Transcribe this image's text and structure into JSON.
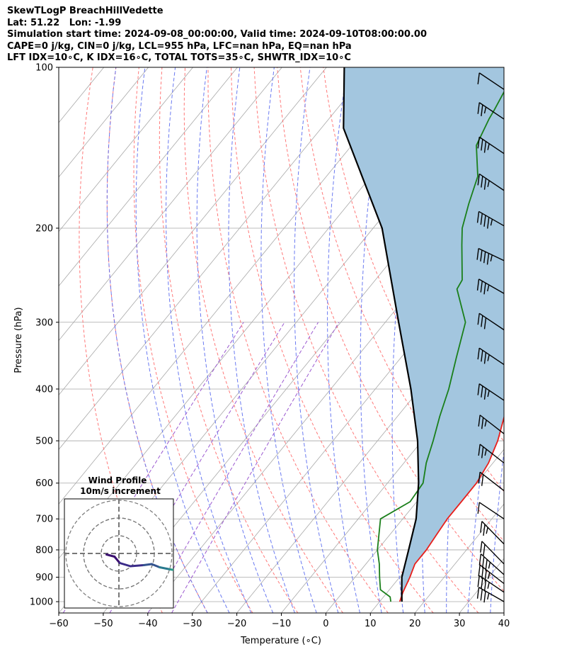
{
  "header": {
    "line1": "SkewTLogP BreachHillVedette",
    "line2": "Lat: 51.22   Lon: -1.99",
    "line3": "Simulation start time: 2024-09-08_00:00:00, Valid time: 2024-09-10T08:00:00.00",
    "line4": "CAPE=0 j/kg, CIN=0 j/kg, LCL=955 hPa, LFC=nan hPa, EQ=nan hPa",
    "line5": "LFT IDX=10∘C, K IDX=16∘C, TOTAL TOTS=35∘C, SHWTR_IDX=10∘C"
  },
  "chart_data": {
    "type": "line",
    "subtype": "skew-t log-p",
    "xlabel": "Temperature (∘C)",
    "ylabel": "Pressure (hPa)",
    "xlim": [
      -60,
      40
    ],
    "ylim": [
      1050,
      100
    ],
    "y_scale": "log",
    "grid": true,
    "x_ticks": [
      "−60",
      "−50",
      "−40",
      "−30",
      "−20",
      "−10",
      "0",
      "10",
      "20",
      "30",
      "40"
    ],
    "y_ticks": [
      "100",
      "200",
      "300",
      "400",
      "500",
      "600",
      "700",
      "800",
      "900",
      "1000"
    ],
    "y_tick_values": [
      100,
      200,
      300,
      400,
      500,
      600,
      700,
      800,
      900,
      1000
    ],
    "series": [
      {
        "key": "temperature",
        "color": "#e8201c",
        "points": [
          [
            14.5,
            1000
          ],
          [
            13.5,
            960
          ],
          [
            12.3,
            900
          ],
          [
            11.0,
            850
          ],
          [
            11.0,
            800
          ],
          [
            10.5,
            750
          ],
          [
            10.0,
            700
          ],
          [
            10.0,
            650
          ],
          [
            10.0,
            600
          ],
          [
            9.0,
            550
          ],
          [
            7.0,
            500
          ],
          [
            4.0,
            450
          ],
          [
            1.5,
            400
          ],
          [
            -1.5,
            350
          ],
          [
            -4.0,
            300
          ],
          [
            -10.0,
            250
          ],
          [
            -15.5,
            210
          ],
          [
            -17.5,
            200
          ],
          [
            -20.0,
            180
          ],
          [
            -23.0,
            160
          ],
          [
            -26.0,
            140
          ],
          [
            -30.0,
            125
          ],
          [
            -35.0,
            115
          ],
          [
            -40.0,
            105
          ],
          [
            -43.0,
            100
          ]
        ]
      },
      {
        "key": "dewpoint",
        "color": "#1a7f1a",
        "points": [
          [
            12.5,
            1000
          ],
          [
            11.5,
            980
          ],
          [
            8.0,
            950
          ],
          [
            5.5,
            900
          ],
          [
            3.0,
            850
          ],
          [
            0.0,
            800
          ],
          [
            -5.0,
            700
          ],
          [
            -1.5,
            650
          ],
          [
            -2.0,
            600
          ],
          [
            -5.0,
            550
          ],
          [
            -7.5,
            500
          ],
          [
            -10.5,
            450
          ],
          [
            -13.5,
            400
          ],
          [
            -17.5,
            350
          ],
          [
            -22.0,
            300
          ],
          [
            -30.0,
            260
          ],
          [
            -30.5,
            250
          ],
          [
            -37.0,
            215
          ],
          [
            -40.0,
            200
          ],
          [
            -43.0,
            180
          ],
          [
            -46.0,
            160
          ],
          [
            -52.0,
            140
          ],
          [
            -54.0,
            125
          ],
          [
            -54.5,
            120
          ],
          [
            -55.5,
            112
          ],
          [
            -57.0,
            100
          ]
        ]
      },
      {
        "key": "parcel",
        "color": "#000000",
        "points": [
          [
            15.0,
            1000
          ],
          [
            13.0,
            955
          ],
          [
            10.5,
            900
          ],
          [
            7.0,
            800
          ],
          [
            3.0,
            700
          ],
          [
            -3.0,
            600
          ],
          [
            -11.0,
            500
          ],
          [
            -22.0,
            400
          ],
          [
            -37.0,
            300
          ],
          [
            -58.0,
            200
          ],
          [
            -85.0,
            130
          ],
          [
            -96.0,
            100
          ]
        ]
      }
    ],
    "wind_barbs": [
      {
        "p": 1000,
        "speed": 25,
        "dir": 280
      },
      {
        "p": 960,
        "speed": 25,
        "dir": 285
      },
      {
        "p": 925,
        "speed": 25,
        "dir": 290
      },
      {
        "p": 890,
        "speed": 25,
        "dir": 295
      },
      {
        "p": 850,
        "speed": 20,
        "dir": 300
      },
      {
        "p": 780,
        "speed": 15,
        "dir": 300
      },
      {
        "p": 700,
        "speed": 10,
        "dir": 285
      },
      {
        "p": 620,
        "speed": 20,
        "dir": 290
      },
      {
        "p": 550,
        "speed": 15,
        "dir": 290
      },
      {
        "p": 485,
        "speed": 15,
        "dir": 290
      },
      {
        "p": 420,
        "speed": 25,
        "dir": 285
      },
      {
        "p": 360,
        "speed": 25,
        "dir": 285
      },
      {
        "p": 310,
        "speed": 30,
        "dir": 285
      },
      {
        "p": 265,
        "speed": 25,
        "dir": 280
      },
      {
        "p": 230,
        "speed": 35,
        "dir": 275
      },
      {
        "p": 198,
        "speed": 35,
        "dir": 280
      },
      {
        "p": 170,
        "speed": 25,
        "dir": 285
      },
      {
        "p": 145,
        "speed": 25,
        "dir": 285
      },
      {
        "p": 125,
        "speed": 15,
        "dir": 285
      },
      {
        "p": 110,
        "speed": 10,
        "dir": 285
      }
    ],
    "inset": {
      "title": "Wind Profile",
      "subtitle": "10m/s increment",
      "rings_ms": [
        10,
        20,
        30
      ],
      "hodograph_points": [
        [
          -0.5,
          -0.05
        ],
        [
          -0.35,
          -0.15
        ],
        [
          -0.25,
          -0.45
        ],
        [
          -0.05,
          -0.6
        ],
        [
          0.2,
          -0.55
        ],
        [
          0.35,
          -0.5
        ],
        [
          0.5,
          -0.65
        ],
        [
          0.7,
          -0.75
        ],
        [
          0.95,
          -0.85
        ],
        [
          1.0,
          -0.45
        ],
        [
          1.05,
          -0.3
        ]
      ]
    },
    "colors": {
      "fill": "#a3c6df",
      "dry_adiabat": "#ff6a6a",
      "moist_adiabat": "#5a6cf0",
      "mixing_ratio": "#9b59d0",
      "isotherm": "#a8a8a8",
      "barb": "#000000"
    }
  }
}
